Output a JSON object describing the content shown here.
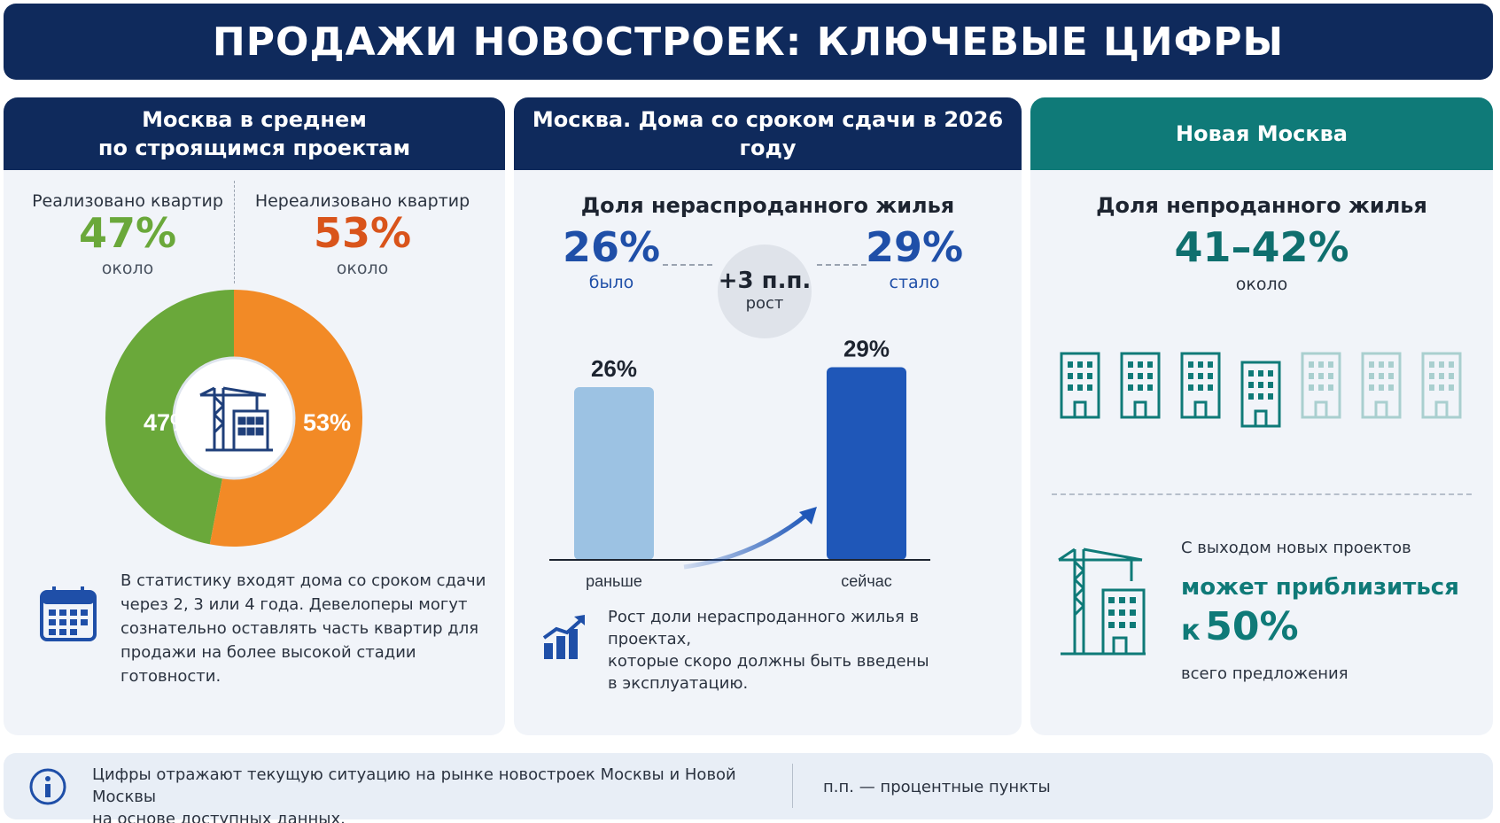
{
  "title": "ПРОДАЖИ НОВОСТРОЕК: КЛЮЧЕВЫЕ ЦИФРЫ",
  "colors": {
    "navy": "#0f2a5c",
    "teal": "#0f7a78",
    "green": "#6aa83a",
    "orange": "#f28a26",
    "bar_before": "#9cc2e3",
    "bar_now": "#1f57b8"
  },
  "panel1": {
    "header_line1": "Москва в среднем",
    "header_line2": "по строящимся проектам",
    "sold_label": "Реализовано квартир",
    "sold_value": "47%",
    "sold_note": "около",
    "unsold_label": "Нереализовано квартир",
    "unsold_value": "53%",
    "unsold_note": "около",
    "center_icon": "crane-building-icon",
    "note_icon": "calendar-icon",
    "note_line1": "В статистику входят дома со сроком сдачи",
    "note_line2": "через 2, 3 или 4 года. Девелоперы могут",
    "note_line3": "сознательно оставлять часть квартир для",
    "note_line4": "продажи на более высокой стадии готовности."
  },
  "panel2": {
    "header": "Москва. Дома со сроком сдачи в 2026 году",
    "subtitle": "Доля нераспроданного жилья",
    "before_value": "26%",
    "before_label": "было",
    "change_value": "+3 п.п.",
    "change_label": "рост",
    "after_value": "29%",
    "after_label": "стало",
    "note_icon": "growth-chart-icon",
    "note_line1": "Рост доли нераспроданного жилья в проектах,",
    "note_line2": "которые скоро должны быть введены",
    "note_line3": "в эксплуатацию."
  },
  "panel3": {
    "header": "Новая Москва",
    "subtitle": "Доля непроданного жилья",
    "value": "41–42%",
    "value_note": "около",
    "buildings_filled": 4,
    "buildings_total": 7,
    "building_icon": "building-icon",
    "crane_icon": "crane-icon",
    "line1": "С выходом новых проектов",
    "line2": "может приблизиться",
    "line3_prefix": "к",
    "line3_value": "50%",
    "line4": "всего предложения"
  },
  "footer": {
    "info_icon": "info-icon",
    "line1": "Цифры отражают текущую ситуацию на рынке новостроек Москвы и Новой Москвы",
    "line2": "на основе доступных данных.",
    "abbr": "п.п. — процентные пункты"
  },
  "chart_data": [
    {
      "type": "pie",
      "categories": [
        "Реализовано квартир",
        "Нереализовано квартир"
      ],
      "values": [
        47,
        53
      ],
      "data_labels": [
        "47%",
        "53%"
      ],
      "colors": [
        "#6aa83a",
        "#f28a26"
      ]
    },
    {
      "type": "bar",
      "categories": [
        "раньше",
        "сейчас"
      ],
      "values": [
        26,
        29
      ],
      "data_labels": [
        "26%",
        "29%"
      ],
      "ylim": [
        0,
        32
      ],
      "colors": [
        "#9cc2e3",
        "#1f57b8"
      ]
    }
  ]
}
